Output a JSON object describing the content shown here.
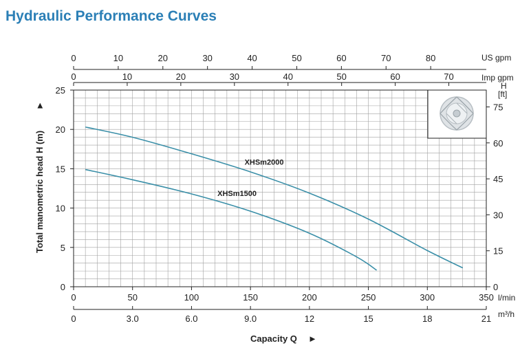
{
  "title": "Hydraulic Performance Curves",
  "colors": {
    "title": "#2b7fb6",
    "curve": "#3a8fa8",
    "grid": "#a0a0a0",
    "axis": "#222222"
  },
  "units": {
    "us_gpm": "US gpm",
    "imp_gpm": "Imp gpm",
    "ft_h": "H",
    "ft_unit": "[ft]",
    "lmin": "l/min",
    "m3h": "m³/h"
  },
  "chart_data": {
    "type": "line",
    "title": "Hydraulic Performance Curves",
    "xlabel": "Capacity Q",
    "ylabel": "Total manometric head H (m)",
    "xlim": [
      0,
      350
    ],
    "ylim": [
      0,
      25
    ],
    "x_unit": "l/min",
    "y_unit": "m",
    "grid": true,
    "xticks": [
      0,
      50,
      100,
      150,
      200,
      250,
      300,
      350
    ],
    "yticks": [
      0,
      5,
      10,
      15,
      20,
      25
    ],
    "secondary_axes": {
      "m3h": {
        "ticks": [
          0,
          3.0,
          6.0,
          9.0,
          12,
          15,
          18,
          21
        ],
        "labels": [
          "0",
          "3.0",
          "6.0",
          "9.0",
          "12",
          "15",
          "18",
          "21"
        ]
      },
      "us_gpm": {
        "ticks": [
          0,
          10,
          20,
          30,
          40,
          50,
          60,
          70,
          80
        ]
      },
      "imp_gpm": {
        "ticks": [
          0,
          10,
          20,
          30,
          40,
          50,
          60,
          70
        ]
      },
      "ft": {
        "ticks": [
          0,
          15,
          30,
          45,
          60,
          75
        ]
      }
    },
    "series": [
      {
        "name": "XHSm2000",
        "x": [
          10,
          50,
          100,
          150,
          200,
          250,
          300,
          330
        ],
        "y": [
          20.3,
          19.0,
          16.9,
          14.6,
          11.9,
          8.6,
          4.6,
          2.4
        ]
      },
      {
        "name": "XHSm1500",
        "x": [
          10,
          50,
          100,
          150,
          200,
          240,
          257
        ],
        "y": [
          14.9,
          13.6,
          11.8,
          9.6,
          6.8,
          3.8,
          2.1
        ]
      }
    ]
  }
}
